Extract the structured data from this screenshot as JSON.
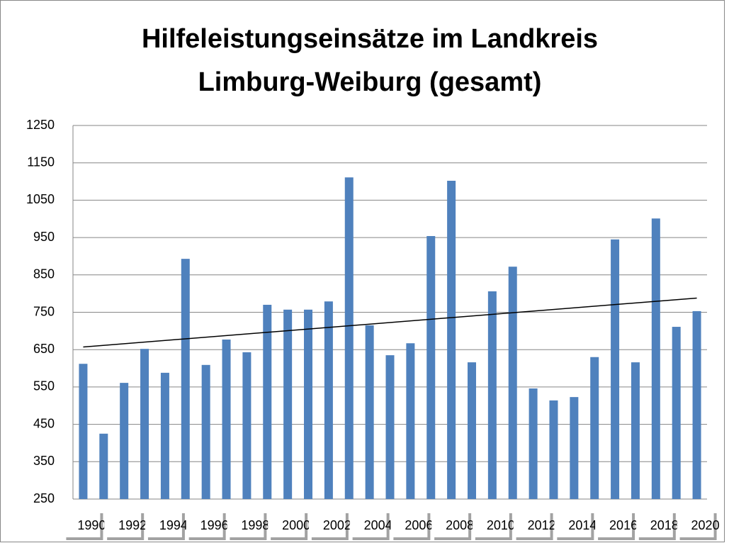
{
  "chart_data": {
    "type": "bar",
    "title": [
      "Hilfeleistungseinsätze im Landkreis",
      "Limburg-Weiburg (gesamt)"
    ],
    "categories": [
      "1990",
      null,
      "1992",
      null,
      "1994",
      null,
      "1996",
      null,
      "1998",
      null,
      "2000",
      null,
      "2002",
      null,
      "2004",
      null,
      "2006",
      null,
      "2008",
      null,
      "2010",
      null,
      "2012",
      null,
      "2014",
      null,
      "2016",
      null,
      "2018",
      null,
      "2020"
    ],
    "values": [
      612,
      425,
      561,
      652,
      588,
      893,
      609,
      677,
      643,
      770,
      757,
      757,
      779,
      1111,
      715,
      635,
      667,
      954,
      1102,
      616,
      806,
      872,
      546,
      514,
      523,
      630,
      945,
      616,
      1001,
      711,
      753
    ],
    "color": "#4f81bd",
    "trend": {
      "values": [
        657,
        788
      ],
      "color": "#000000"
    },
    "ylim": [
      250,
      1250
    ],
    "yticks": [
      250,
      350,
      450,
      550,
      650,
      750,
      850,
      950,
      1050,
      1150,
      1250
    ],
    "grid": true
  }
}
